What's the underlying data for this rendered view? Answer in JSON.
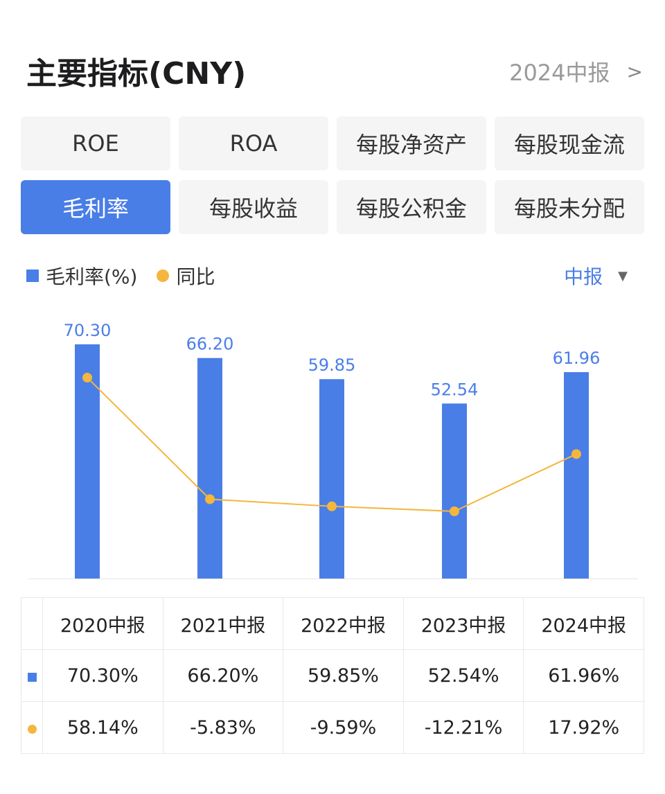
{
  "header": {
    "title": "主要指标(CNY)",
    "period_link": "2024中报",
    "chevron": ">"
  },
  "tabs": [
    {
      "label": "ROE",
      "active": false
    },
    {
      "label": "ROA",
      "active": false
    },
    {
      "label": "每股净资产",
      "active": false
    },
    {
      "label": "每股现金流",
      "active": false
    },
    {
      "label": "毛利率",
      "active": true
    },
    {
      "label": "每股收益",
      "active": false
    },
    {
      "label": "每股公积金",
      "active": false
    },
    {
      "label": "每股未分配",
      "active": false
    }
  ],
  "legend": {
    "bar_label": "毛利率(%)",
    "line_label": "同比",
    "period_select": "中报",
    "caret": "▼"
  },
  "colors": {
    "accent": "#4a7ee7",
    "line": "#f4b63c",
    "positive": "#e0493f",
    "negative": "#2fa462"
  },
  "chart_data": {
    "type": "bar",
    "categories": [
      "2020中报",
      "2021中报",
      "2022中报",
      "2023中报",
      "2024中报"
    ],
    "series": [
      {
        "name": "毛利率(%)",
        "type": "bar",
        "values": [
          70.3,
          66.2,
          59.85,
          52.54,
          61.96
        ],
        "labels": [
          "70.30",
          "66.20",
          "59.85",
          "52.54",
          "61.96"
        ]
      },
      {
        "name": "同比",
        "type": "line",
        "values": [
          58.14,
          -5.83,
          -9.59,
          -12.21,
          17.92
        ]
      }
    ],
    "legend_position": "top-left",
    "grid": false
  },
  "table": {
    "headers": [
      "2020中报",
      "2021中报",
      "2022中报",
      "2023中报",
      "2024中报"
    ],
    "rows": [
      {
        "marker": "square",
        "values": [
          "70.30%",
          "66.20%",
          "59.85%",
          "52.54%",
          "61.96%"
        ]
      },
      {
        "marker": "dot",
        "values": [
          "58.14%",
          "-5.83%",
          "-9.59%",
          "-12.21%",
          "17.92%"
        ]
      }
    ]
  }
}
